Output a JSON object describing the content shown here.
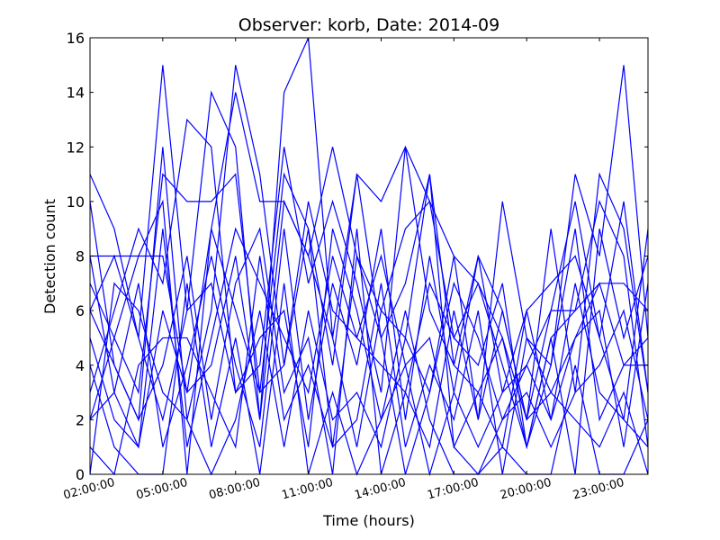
{
  "chart_data": {
    "type": "line",
    "title": "Observer: korb, Date: 2014-09",
    "xlabel": "Time (hours)",
    "ylabel": "Detection count",
    "xlim": [
      2,
      25
    ],
    "ylim": [
      0,
      16
    ],
    "x_ticks": [
      {
        "value": 2,
        "label": "02:00:00"
      },
      {
        "value": 5,
        "label": "05:00:00"
      },
      {
        "value": 8,
        "label": "08:00:00"
      },
      {
        "value": 11,
        "label": "11:00:00"
      },
      {
        "value": 14,
        "label": "14:00:00"
      },
      {
        "value": 17,
        "label": "17:00:00"
      },
      {
        "value": 20,
        "label": "20:00:00"
      },
      {
        "value": 23,
        "label": "23:00:00"
      }
    ],
    "y_ticks": [
      {
        "value": 0,
        "label": "0"
      },
      {
        "value": 2,
        "label": "2"
      },
      {
        "value": 4,
        "label": "4"
      },
      {
        "value": 6,
        "label": "6"
      },
      {
        "value": 8,
        "label": "8"
      },
      {
        "value": 10,
        "label": "10"
      },
      {
        "value": 12,
        "label": "12"
      },
      {
        "value": 14,
        "label": "14"
      },
      {
        "value": 16,
        "label": "16"
      }
    ],
    "grid": false,
    "legend": "none",
    "line_color": "#0000ff",
    "x": [
      2,
      3,
      4,
      5,
      6,
      7,
      8,
      9,
      10,
      11,
      12,
      13,
      14,
      15,
      16,
      17,
      18,
      19,
      20,
      21,
      22,
      23,
      24,
      25
    ],
    "series": [
      {
        "values": [
          11,
          9,
          5,
          15,
          6,
          14,
          12,
          2,
          14,
          16,
          5,
          11,
          10,
          12,
          10,
          8,
          7,
          5,
          2,
          9,
          3,
          11,
          9,
          3
        ]
      },
      {
        "values": [
          8,
          8,
          8,
          8,
          3,
          9,
          14,
          10,
          10,
          8,
          12,
          8,
          6,
          9,
          10,
          5,
          7,
          4,
          1,
          5,
          6,
          10,
          8,
          1
        ]
      },
      {
        "values": [
          7,
          5,
          3,
          11,
          10,
          10,
          11,
          3,
          11,
          9,
          4,
          11,
          5,
          7,
          11,
          4,
          8,
          6,
          2,
          6,
          6,
          7,
          7,
          6
        ]
      },
      {
        "values": [
          6,
          4,
          2,
          12,
          2,
          6,
          15,
          11,
          4,
          10,
          6,
          5,
          8,
          4,
          5,
          1,
          3,
          5,
          1,
          4,
          11,
          8,
          15,
          5
        ]
      },
      {
        "values": [
          3,
          6,
          9,
          7,
          13,
          12,
          3,
          4,
          12,
          7,
          10,
          7,
          3,
          12,
          6,
          4,
          3,
          1,
          6,
          7,
          8,
          5,
          2,
          9
        ]
      },
      {
        "values": [
          5,
          2,
          1,
          9,
          1,
          5,
          9,
          7,
          5,
          3,
          8,
          5,
          4,
          3,
          1,
          6,
          2,
          10,
          5,
          4,
          9,
          2,
          4,
          4
        ]
      },
      {
        "values": [
          2,
          3,
          7,
          1,
          4,
          8,
          4,
          1,
          9,
          2,
          7,
          4,
          9,
          2,
          8,
          3,
          1,
          3,
          4,
          2,
          5,
          6,
          1,
          7
        ]
      },
      {
        "values": [
          0,
          7,
          6,
          3,
          2,
          0,
          2,
          6,
          1,
          6,
          2,
          3,
          1,
          5,
          3,
          7,
          5,
          2,
          3,
          1,
          3,
          4,
          6,
          2
        ]
      },
      {
        "values": [
          1,
          0,
          4,
          5,
          5,
          3,
          1,
          8,
          2,
          4,
          1,
          2,
          7,
          1,
          4,
          2,
          6,
          0,
          5,
          3,
          2,
          1,
          3,
          0
        ]
      },
      {
        "values": [
          4,
          1,
          0,
          0,
          7,
          1,
          5,
          0,
          7,
          0,
          3,
          0,
          2,
          6,
          2,
          0,
          0,
          1,
          0,
          0,
          4,
          0,
          0,
          2
        ]
      },
      {
        "values": [
          10,
          4,
          2,
          4,
          8,
          2,
          7,
          9,
          3,
          5,
          0,
          9,
          0,
          3,
          7,
          5,
          4,
          7,
          1,
          5,
          0,
          9,
          5,
          8
        ]
      },
      {
        "values": [
          6,
          8,
          5,
          2,
          6,
          7,
          3,
          5,
          6,
          1,
          9,
          6,
          2,
          4,
          0,
          3,
          8,
          3,
          6,
          2,
          7,
          3,
          2,
          1
        ]
      },
      {
        "values": [
          8,
          3,
          1,
          6,
          3,
          4,
          8,
          2,
          10,
          8,
          5,
          1,
          6,
          5,
          11,
          1,
          0,
          2,
          4,
          6,
          10,
          5,
          10,
          3
        ]
      },
      {
        "values": [
          2,
          5,
          8,
          10,
          0,
          9,
          6,
          3,
          4,
          9,
          1,
          8,
          5,
          0,
          3,
          8,
          2,
          6,
          2,
          3,
          5,
          7,
          4,
          5
        ]
      }
    ]
  }
}
